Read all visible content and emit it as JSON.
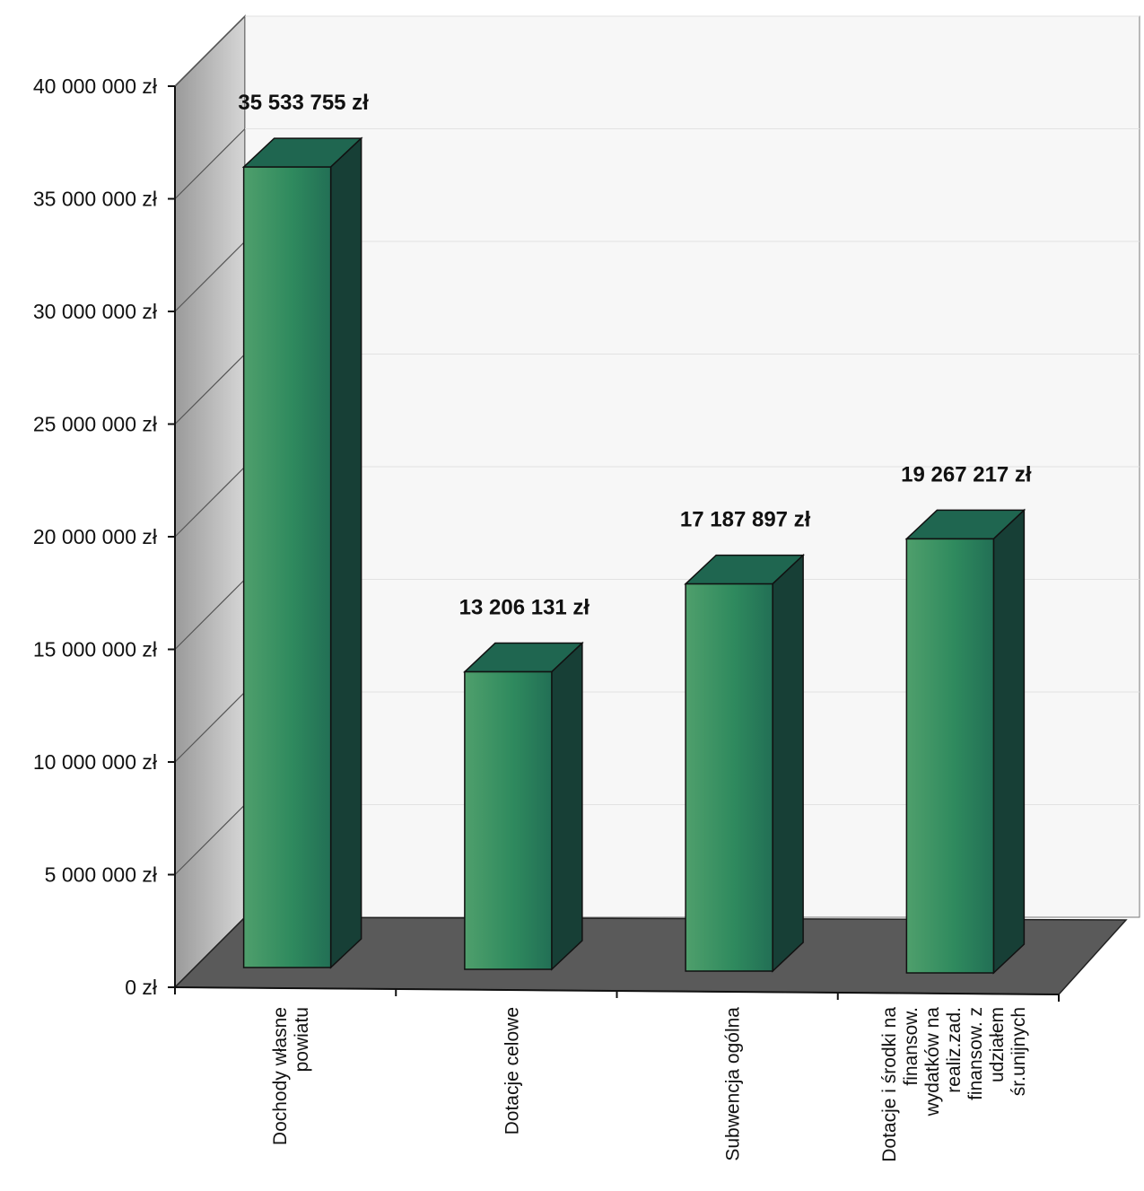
{
  "chart_data": {
    "type": "bar",
    "categories": [
      [
        "Dochody własne",
        "powiatu"
      ],
      [
        "Dotacje celowe"
      ],
      [
        "Subwencja ogólna"
      ],
      [
        "Dotacje i środki na",
        "finansow.",
        "wydatków na",
        "realiz.zad.",
        "finansow. z",
        "udziałem",
        "śr.unijnych"
      ]
    ],
    "values": [
      35533755,
      13206131,
      17187897,
      19267217
    ],
    "value_labels": [
      "35 533 755 zł",
      "13 206 131 zł",
      "17 187 897 zł",
      "19 267 217 zł"
    ],
    "y_ticks": [
      0,
      5000000,
      10000000,
      15000000,
      20000000,
      25000000,
      30000000,
      35000000,
      40000000
    ],
    "y_tick_labels": [
      "0 zł",
      "5 000 000 zł",
      "10 000 000 zł",
      "15 000 000 zł",
      "20 000 000 zł",
      "25 000 000 zł",
      "30 000 000 zł",
      "35 000 000 zł",
      "40 000 000 zł"
    ],
    "ylim": [
      0,
      40000000
    ],
    "grid": true,
    "colors": {
      "bar_front": "#2f8a5e",
      "bar_front_light": "#4fa06a",
      "bar_top": "#1f6650",
      "bar_side": "#173f36",
      "floor": "#5a5a5a",
      "back_wall": "#b0b0b0"
    }
  }
}
